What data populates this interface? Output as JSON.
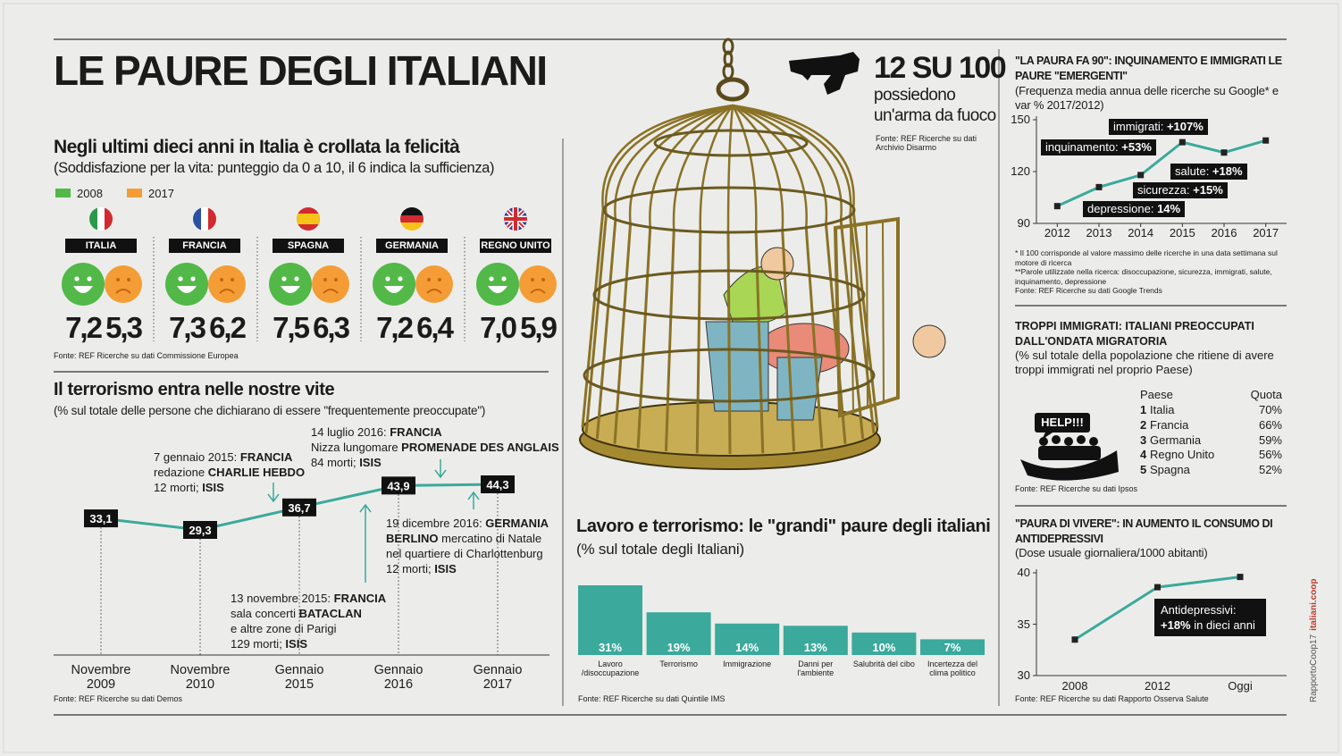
{
  "title": "LE PAURE DEGLI ITALIANI",
  "happiness": {
    "title": "Negli ultimi dieci anni in Italia è crollata la felicità",
    "subtitle": "(Soddisfazione per la vita: punteggio da 0 a 10, il 6 indica la sufficienza)",
    "legend": [
      {
        "name": "2008",
        "color": "#52b848"
      },
      {
        "name": "2017",
        "color": "#f49d37"
      }
    ],
    "countries": [
      {
        "name": "ITALIA",
        "values": [
          "7,2",
          "5,3"
        ]
      },
      {
        "name": "FRANCIA",
        "values": [
          "7,3",
          "6,2"
        ]
      },
      {
        "name": "SPAGNA",
        "values": [
          "7,5",
          "6,3"
        ]
      },
      {
        "name": "GERMANIA",
        "values": [
          "7,2",
          "6,4"
        ]
      },
      {
        "name": "REGNO UNITO",
        "values": [
          "7,0",
          "5,9"
        ]
      }
    ],
    "source": "Fonte: REF Ricerche su dati Commissione Europea"
  },
  "chart_data": [
    {
      "type": "line",
      "title": "Il terrorismo entra nelle nostre vite",
      "subtitle": "(% sul totale delle persone che dichiarano di essere \"frequentemente preoccupate\")",
      "categories": [
        "Novembre 2009",
        "Novembre 2010",
        "Gennaio 2015",
        "Gennaio 2016",
        "Gennaio 2017"
      ],
      "values": [
        33.1,
        29.3,
        36.7,
        43.9,
        44.3
      ],
      "value_labels": [
        "33,1",
        "29,3",
        "36,7",
        "43,9",
        "44,3"
      ],
      "color": "#3ba99c",
      "annotations": [
        [
          [
            "7 gennaio 2015: ",
            {
              "text": "FRANCIA",
              "bold": true
            }
          ],
          [
            "redazione ",
            {
              "text": "CHARLIE HEBDO",
              "bold": true
            }
          ],
          [
            "12 morti; ",
            {
              "text": "ISIS",
              "bold": true
            }
          ]
        ],
        [
          [
            "14 luglio 2016: ",
            {
              "text": "FRANCIA",
              "bold": true
            }
          ],
          [
            "Nizza lungomare ",
            {
              "text": "PROMENADE DES ANGLAIS",
              "bold": true
            }
          ],
          [
            "84 morti; ",
            {
              "text": "ISIS",
              "bold": true
            }
          ]
        ],
        [
          [
            "19 dicembre 2016: ",
            {
              "text": "GERMANIA",
              "bold": true
            }
          ],
          [
            {
              "text": "BERLINO",
              "bold": true
            },
            " mercatino di Natale"
          ],
          [
            "nel quartiere di Charlottenburg"
          ],
          [
            "12 morti; ",
            {
              "text": "ISIS",
              "bold": true
            }
          ]
        ],
        [
          [
            "13 novembre 2015: ",
            {
              "text": "FRANCIA",
              "bold": true
            }
          ],
          [
            "sala concerti ",
            {
              "text": "BATACLAN",
              "bold": true
            }
          ],
          [
            "e altre zone di Parigi"
          ],
          [
            "129 morti; ",
            {
              "text": "ISIS",
              "bold": true
            }
          ]
        ]
      ],
      "source": "Fonte: REF Ricerche su dati Demos"
    },
    {
      "type": "bar",
      "title": "Lavoro e terrorismo: le \"grandi\" paure degli italiani",
      "subtitle": "(% sul totale degli Italiani)",
      "categories": [
        "Lavoro /disoccupazione",
        "Terrorismo",
        "Immigrazione",
        "Danni per l'ambiente",
        "Salubrità del cibo",
        "Incertezza del clima politico"
      ],
      "values": [
        31,
        19,
        14,
        13,
        10,
        7
      ],
      "value_labels": [
        "31%",
        "19%",
        "14%",
        "13%",
        "10%",
        "7%"
      ],
      "color": "#3ba99c",
      "source": "Fonte: REF Ricerche su dati Quintile IMS"
    },
    {
      "type": "line",
      "title": "\"LA PAURA FA 90\": INQUINAMENTO E IMMIGRATI LE PAURE \"EMERGENTI\"",
      "subtitle": "(Frequenza media annua delle ricerche su Google* e var % 2017/2012)",
      "x": [
        2012,
        2013,
        2014,
        2015,
        2016,
        2017
      ],
      "values": [
        100,
        111,
        118,
        137,
        131,
        138
      ],
      "color": "#3ba99c",
      "xlim": [
        2011.5,
        2017.5
      ],
      "xticks": [
        2012,
        2013,
        2014,
        2015,
        2016,
        2017
      ],
      "ylim": [
        90,
        150
      ],
      "yticks": [
        90,
        120,
        150
      ],
      "annotations": [
        [
          [
            "immigrati: ",
            {
              "text": "+107%",
              "bold": true
            }
          ]
        ],
        [
          [
            "inquinamento: ",
            {
              "text": "+53%",
              "bold": true
            }
          ]
        ],
        [
          [
            "salute: ",
            {
              "text": "+18%",
              "bold": true
            }
          ]
        ],
        [
          [
            "sicurezza: ",
            {
              "text": "+15%",
              "bold": true
            }
          ]
        ],
        [
          [
            "depressione: ",
            {
              "text": "14%",
              "bold": true
            }
          ]
        ]
      ],
      "footnotes": [
        "* Il 100 corrisponde al valore massimo delle ricerche in una data settimana sul motore di ricerca",
        "**Parole utilizzate nella ricerca: disoccupazione, sicurezza, immigrati, salute, inquinamento, depressione",
        "Fonte: REF Ricerche su dati Google Trends"
      ]
    },
    {
      "type": "line",
      "title": "\"PAURA DI VIVERE\": IN AUMENTO IL CONSUMO DI ANTIDEPRESSIVI",
      "subtitle": "(Dose usuale giornaliera/1000 abitanti)",
      "categories": [
        "2008",
        "2012",
        "Oggi"
      ],
      "values": [
        33.5,
        38.6,
        39.6
      ],
      "color": "#3ba99c",
      "ylim": [
        30,
        40
      ],
      "yticks": [
        30,
        35,
        40
      ],
      "annotations": [
        [
          [
            "Antidepressivi:"
          ],
          [
            {
              "text": "+18%",
              "bold": true
            },
            " in dieci anni"
          ]
        ]
      ],
      "source": "Fonte: REF Ricerche su dati Rapporto Osserva Salute"
    }
  ],
  "gun": {
    "headline": "12 SU 100",
    "text": "possiedono un'arma da fuoco",
    "source": "Fonte: REF Ricerche su dati Archivio Disarmo"
  },
  "immigration": {
    "title": "TROPPI IMMIGRATI: ITALIANI PREOCCUPATI DALL'ONDATA MIGRATORIA",
    "subtitle": "(% sul totale della popolazione che ritiene di avere troppi immigrati nel proprio Paese)",
    "icon_label": "HELP!!!",
    "columns": [
      "Paese",
      "Quota"
    ],
    "rows": [
      [
        "1",
        "Italia",
        "70%"
      ],
      [
        "2",
        "Francia",
        "66%"
      ],
      [
        "3",
        "Germania",
        "59%"
      ],
      [
        "4",
        "Regno Unito",
        "56%"
      ],
      [
        "5",
        "Spagna",
        "52%"
      ]
    ],
    "source": "Fonte: REF Ricerche su dati Ipsos"
  },
  "side_credit": [
    "RapportoCoop17",
    "italiani.coop"
  ]
}
